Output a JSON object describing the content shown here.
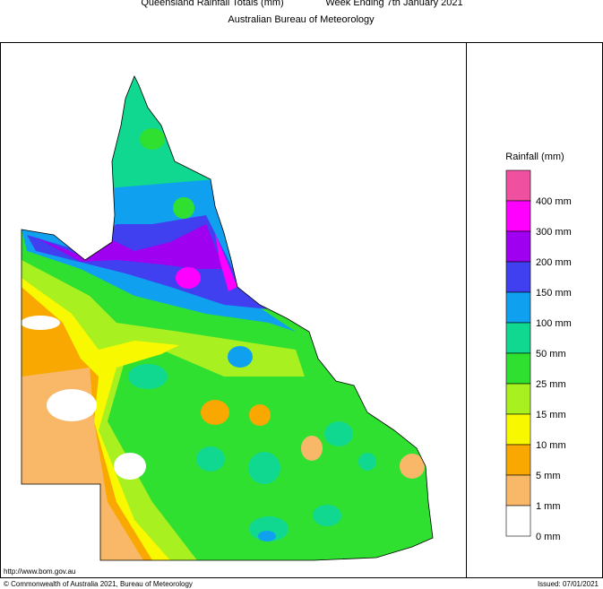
{
  "header": {
    "title": "Queensland Rainfall Totals (mm)",
    "period": "Week Ending 7th January 2021",
    "agency": "Australian Bureau of Meteorology"
  },
  "legend": {
    "title": "Rainfall (mm)",
    "colors": [
      "#f050a0",
      "#ff00ff",
      "#a000f0",
      "#4040f0",
      "#10a0f0",
      "#10d890",
      "#30e030",
      "#a8f020",
      "#f8f800",
      "#f8a800",
      "#f8b868",
      "#ffffff"
    ],
    "labels": [
      "400 mm",
      "300 mm",
      "200 mm",
      "150 mm",
      "100 mm",
      "50 mm",
      "25 mm",
      "15 mm",
      "10 mm",
      "5 mm",
      "1 mm",
      "0 mm"
    ]
  },
  "footer": {
    "url": "http://www.bom.gov.au",
    "copyright": "© Commonwealth of Australia 2021, Bureau of Meteorology",
    "issued": "Issued: 07/01/2021"
  }
}
